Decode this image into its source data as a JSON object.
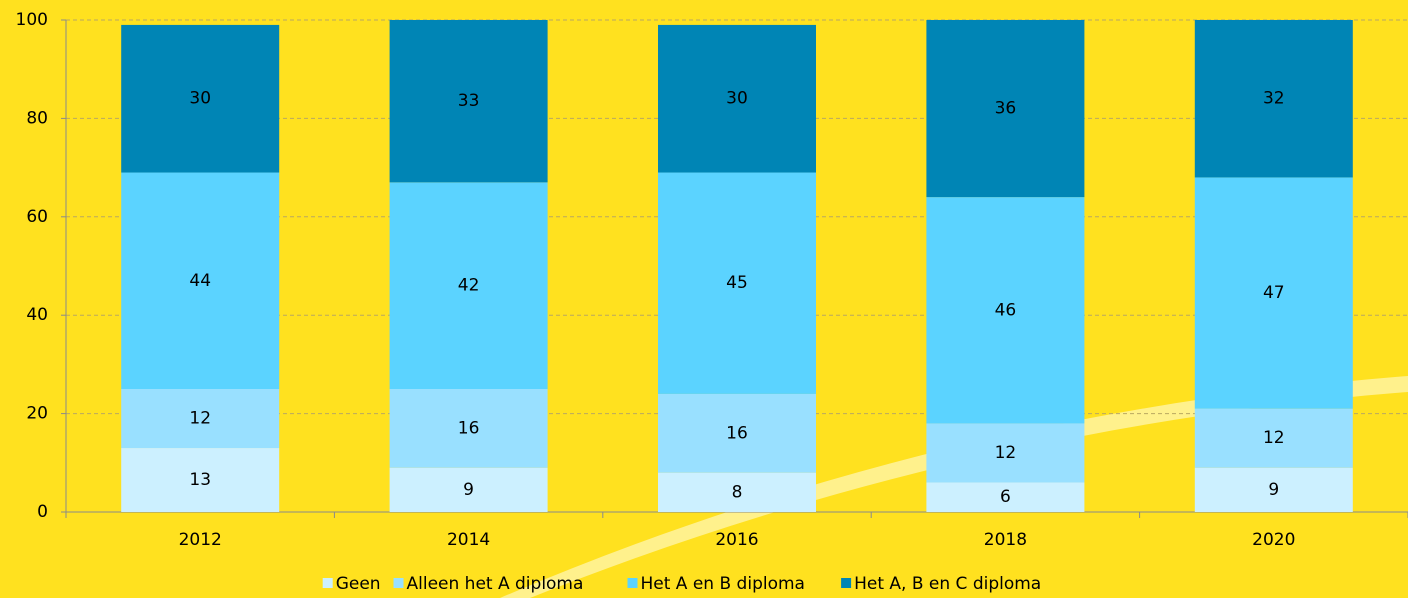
{
  "chart_data": {
    "type": "stacked_bar",
    "categories": [
      "2012",
      "2014",
      "2016",
      "2018",
      "2020"
    ],
    "series": [
      {
        "name": "Geen",
        "color": "#ccf0ff",
        "values": [
          13,
          9,
          8,
          6,
          9
        ]
      },
      {
        "name": "Alleen het A diploma",
        "color": "#99e0ff",
        "values": [
          12,
          16,
          16,
          12,
          12
        ]
      },
      {
        "name": "Het A en B diploma",
        "color": "#5bd3ff",
        "values": [
          44,
          42,
          45,
          46,
          47
        ]
      },
      {
        "name": "Het A, B en C diploma",
        "color": "#0085b5",
        "values": [
          30,
          33,
          30,
          36,
          32
        ]
      }
    ],
    "ylim": [
      0,
      100
    ],
    "yticks": [
      0,
      20,
      40,
      60,
      80,
      100
    ],
    "grid": true,
    "legend": "bottom"
  }
}
